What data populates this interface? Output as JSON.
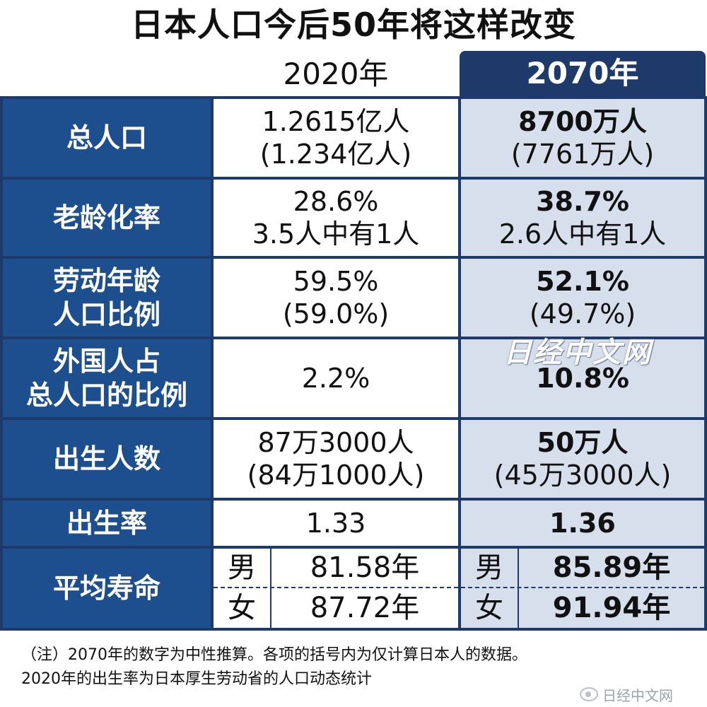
{
  "title": "日本人口今后50年将这样改变",
  "years": {
    "y2020": "2020年",
    "y2070": "2070年"
  },
  "rows": [
    {
      "label_lines": [
        "总人口"
      ],
      "v2020": [
        "1.2615亿人",
        "(1.234亿人)"
      ],
      "v2070": [
        "8700万人",
        "(7761万人)"
      ]
    },
    {
      "label_lines": [
        "老龄化率"
      ],
      "v2020": [
        "28.6%",
        "3.5人中有1人"
      ],
      "v2070": [
        "38.7%",
        "2.6人中有1人"
      ]
    },
    {
      "label_lines": [
        "劳动年龄",
        "人口比例"
      ],
      "v2020": [
        "59.5%",
        "(59.0%)"
      ],
      "v2070": [
        "52.1%",
        "(49.7%)"
      ]
    },
    {
      "label_lines": [
        "外国人占",
        "总人口的比例"
      ],
      "v2020": [
        "2.2%"
      ],
      "v2070": [
        "10.8%"
      ]
    },
    {
      "label_lines": [
        "出生人数"
      ],
      "v2020": [
        "87万3000人",
        "(84万1000人)"
      ],
      "v2070": [
        "50万人",
        "(45万3000人)"
      ]
    },
    {
      "label_lines": [
        "出生率"
      ],
      "v2020": [
        "1.33"
      ],
      "v2070": [
        "1.36"
      ]
    }
  ],
  "life": {
    "label": "平均寿命",
    "male": "男",
    "female": "女",
    "v2020_male": "81.58年",
    "v2020_female": "87.72年",
    "v2070_male": "85.89年",
    "v2070_female": "91.94年"
  },
  "watermark": "日经中文网",
  "note": {
    "line1": "（注）2070年的数字为中性推算。各项的括号内为仅计算日本人的数据。",
    "line2": "2020年的出生率为日本厚生劳动省的人口动态统计"
  },
  "corner_watermark": "日经中文网",
  "colors": {
    "header_bg": "#1d3a6b",
    "label_bg": "#1d4f8f",
    "col2070_bg": "#d7dfec"
  }
}
